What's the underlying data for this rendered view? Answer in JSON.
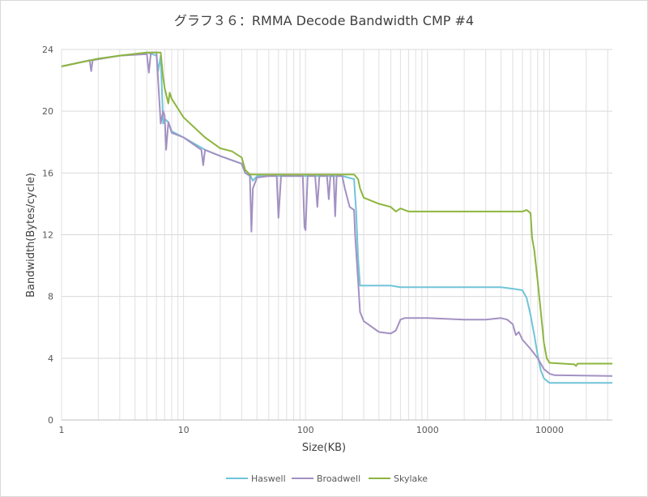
{
  "chart_data": {
    "type": "line",
    "title": "グラフ３６：RMMA Decode Bandwidth CMP #4",
    "xlabel": "Size(KB)",
    "ylabel": "Bandwidth(Bytes/cycle)",
    "xscale": "log",
    "xlim": [
      1,
      32768
    ],
    "ylim": [
      0,
      24
    ],
    "xticks": [
      1,
      10,
      100,
      1000,
      10000
    ],
    "xtick_labels": [
      "1",
      "10",
      "100",
      "1000",
      "10000"
    ],
    "yticks": [
      0,
      4,
      8,
      12,
      16,
      20,
      24
    ],
    "ytick_labels": [
      "0",
      "4",
      "8",
      "12",
      "16",
      "20",
      "24"
    ],
    "grid": true,
    "legend_position": "bottom",
    "series": [
      {
        "name": "Haswell",
        "color": "#71c4d9",
        "points": [
          [
            1,
            22.9
          ],
          [
            1.5,
            23.2
          ],
          [
            2,
            23.4
          ],
          [
            3,
            23.6
          ],
          [
            4,
            23.7
          ],
          [
            5,
            23.8
          ],
          [
            5.5,
            23.7
          ],
          [
            6,
            23.6
          ],
          [
            6.2,
            22.6
          ],
          [
            6.5,
            23.6
          ],
          [
            6.8,
            19.2
          ],
          [
            7,
            19.5
          ],
          [
            7.5,
            19.3
          ],
          [
            8,
            18.7
          ],
          [
            10,
            18.3
          ],
          [
            15,
            17.5
          ],
          [
            20,
            17.1
          ],
          [
            30,
            16.6
          ],
          [
            32,
            16.0
          ],
          [
            35,
            15.9
          ],
          [
            37,
            15.5
          ],
          [
            40,
            15.8
          ],
          [
            60,
            15.8
          ],
          [
            100,
            15.8
          ],
          [
            150,
            15.8
          ],
          [
            200,
            15.8
          ],
          [
            250,
            15.6
          ],
          [
            260,
            13.5
          ],
          [
            270,
            10.5
          ],
          [
            280,
            8.7
          ],
          [
            500,
            8.7
          ],
          [
            600,
            8.6
          ],
          [
            1000,
            8.6
          ],
          [
            2000,
            8.6
          ],
          [
            4000,
            8.6
          ],
          [
            5000,
            8.5
          ],
          [
            6000,
            8.4
          ],
          [
            6500,
            7.9
          ],
          [
            7000,
            6.8
          ],
          [
            7500,
            5.5
          ],
          [
            8000,
            4.2
          ],
          [
            8500,
            3.2
          ],
          [
            9000,
            2.7
          ],
          [
            10000,
            2.4
          ],
          [
            32768,
            2.4
          ]
        ]
      },
      {
        "name": "Broadwell",
        "color": "#a391c2",
        "points": [
          [
            1,
            22.9
          ],
          [
            1.7,
            23.3
          ],
          [
            1.75,
            22.6
          ],
          [
            1.8,
            23.3
          ],
          [
            3,
            23.6
          ],
          [
            5,
            23.7
          ],
          [
            5.2,
            22.5
          ],
          [
            5.4,
            23.8
          ],
          [
            6,
            23.8
          ],
          [
            6.5,
            19.2
          ],
          [
            6.8,
            20.0
          ],
          [
            7,
            19.7
          ],
          [
            7.2,
            17.5
          ],
          [
            7.5,
            19.3
          ],
          [
            8,
            18.6
          ],
          [
            10,
            18.3
          ],
          [
            14,
            17.5
          ],
          [
            14.5,
            16.5
          ],
          [
            15,
            17.5
          ],
          [
            20,
            17.1
          ],
          [
            30,
            16.6
          ],
          [
            32,
            16.0
          ],
          [
            35,
            15.8
          ],
          [
            36,
            12.2
          ],
          [
            37,
            15.0
          ],
          [
            40,
            15.7
          ],
          [
            50,
            15.8
          ],
          [
            58,
            15.8
          ],
          [
            60,
            13.1
          ],
          [
            63,
            15.8
          ],
          [
            80,
            15.8
          ],
          [
            95,
            15.8
          ],
          [
            98,
            12.5
          ],
          [
            100,
            12.3
          ],
          [
            104,
            15.8
          ],
          [
            120,
            15.8
          ],
          [
            125,
            13.8
          ],
          [
            130,
            15.8
          ],
          [
            150,
            15.8
          ],
          [
            155,
            14.3
          ],
          [
            160,
            15.8
          ],
          [
            170,
            15.8
          ],
          [
            175,
            13.2
          ],
          [
            180,
            15.8
          ],
          [
            200,
            15.8
          ],
          [
            210,
            15.0
          ],
          [
            230,
            13.8
          ],
          [
            250,
            13.6
          ],
          [
            255,
            12.0
          ],
          [
            270,
            9.0
          ],
          [
            280,
            7.0
          ],
          [
            300,
            6.4
          ],
          [
            400,
            5.7
          ],
          [
            500,
            5.6
          ],
          [
            550,
            5.8
          ],
          [
            600,
            6.5
          ],
          [
            650,
            6.6
          ],
          [
            1000,
            6.6
          ],
          [
            2000,
            6.5
          ],
          [
            3000,
            6.5
          ],
          [
            4000,
            6.6
          ],
          [
            4500,
            6.5
          ],
          [
            5000,
            6.2
          ],
          [
            5300,
            5.5
          ],
          [
            5600,
            5.7
          ],
          [
            6000,
            5.2
          ],
          [
            7000,
            4.6
          ],
          [
            8000,
            4.0
          ],
          [
            9000,
            3.3
          ],
          [
            10000,
            3.0
          ],
          [
            11000,
            2.9
          ],
          [
            32768,
            2.85
          ]
        ]
      },
      {
        "name": "Skylake",
        "color": "#8db53f",
        "points": [
          [
            1,
            22.9
          ],
          [
            2,
            23.4
          ],
          [
            3,
            23.6
          ],
          [
            5,
            23.8
          ],
          [
            6,
            23.8
          ],
          [
            6.5,
            23.8
          ],
          [
            6.8,
            22.2
          ],
          [
            7,
            21.5
          ],
          [
            7.5,
            20.5
          ],
          [
            7.7,
            21.2
          ],
          [
            8,
            20.8
          ],
          [
            10,
            19.6
          ],
          [
            15,
            18.3
          ],
          [
            20,
            17.6
          ],
          [
            25,
            17.4
          ],
          [
            30,
            17.0
          ],
          [
            32,
            16.2
          ],
          [
            35,
            15.9
          ],
          [
            100,
            15.9
          ],
          [
            250,
            15.9
          ],
          [
            270,
            15.6
          ],
          [
            280,
            15.0
          ],
          [
            300,
            14.4
          ],
          [
            400,
            14.0
          ],
          [
            500,
            13.8
          ],
          [
            550,
            13.5
          ],
          [
            600,
            13.7
          ],
          [
            700,
            13.5
          ],
          [
            1000,
            13.5
          ],
          [
            2000,
            13.5
          ],
          [
            4000,
            13.5
          ],
          [
            6000,
            13.5
          ],
          [
            6500,
            13.6
          ],
          [
            7000,
            13.4
          ],
          [
            7200,
            11.8
          ],
          [
            7500,
            11.0
          ],
          [
            7800,
            9.8
          ],
          [
            8000,
            9.0
          ],
          [
            8500,
            7.0
          ],
          [
            9000,
            5.0
          ],
          [
            9500,
            4.0
          ],
          [
            10000,
            3.7
          ],
          [
            16000,
            3.6
          ],
          [
            16500,
            3.5
          ],
          [
            17000,
            3.65
          ],
          [
            32768,
            3.65
          ]
        ]
      }
    ]
  }
}
